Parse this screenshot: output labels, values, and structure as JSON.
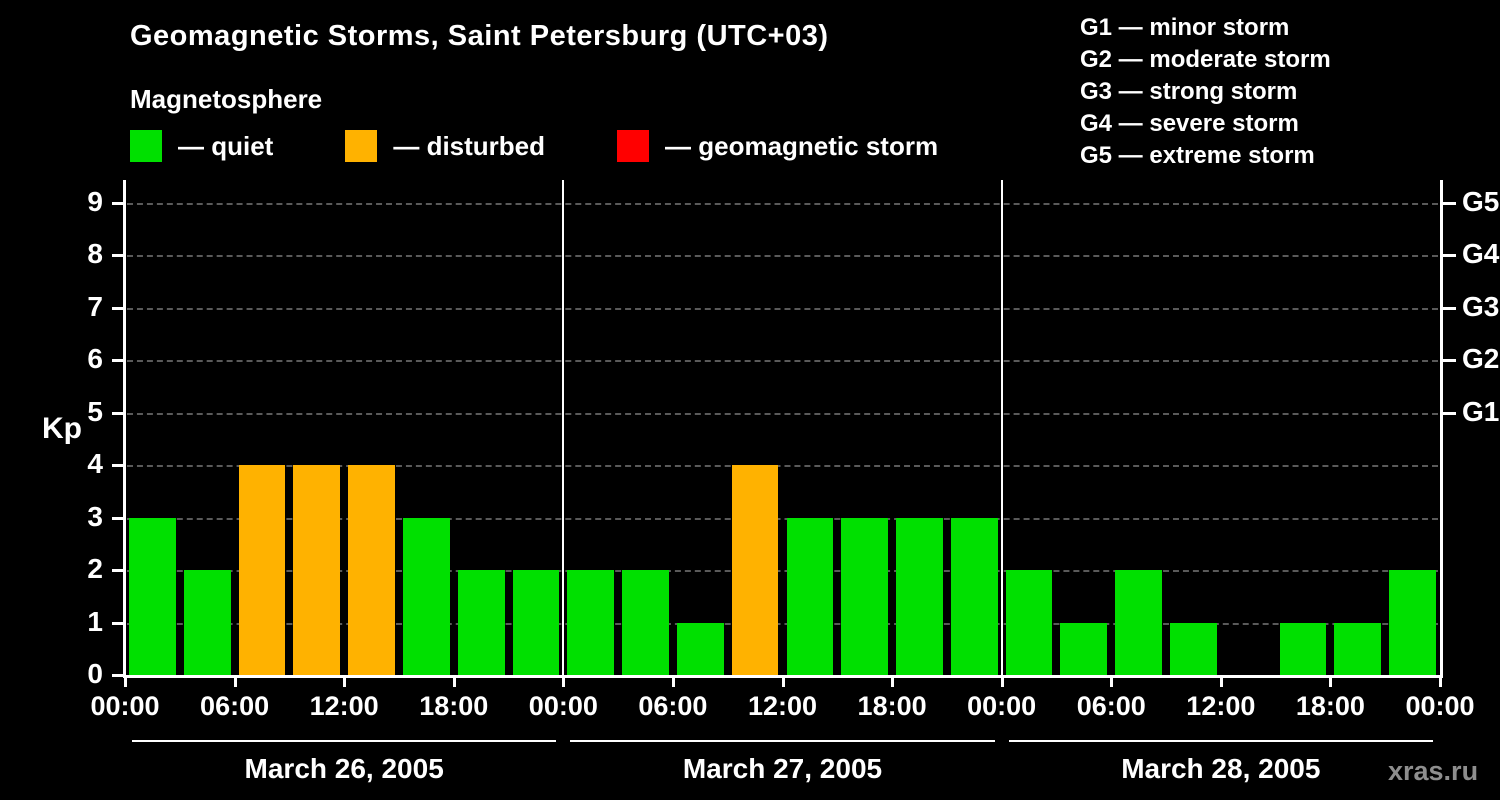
{
  "header": {
    "title": "Geomagnetic Storms, Saint Petersburg (UTC+03)",
    "subtitle": "Magnetosphere"
  },
  "legend": {
    "items": [
      {
        "label": "— quiet",
        "color": "#00e000"
      },
      {
        "label": "— disturbed",
        "color": "#ffb200"
      },
      {
        "label": "— geomagnetic storm",
        "color": "#ff0000"
      }
    ]
  },
  "storm_scale": [
    "G1 — minor storm",
    "G2 — moderate storm",
    "G3 — strong storm",
    "G4 — severe storm",
    "G5 — extreme storm"
  ],
  "watermark": "xras.ru",
  "chart_data": {
    "type": "bar",
    "title": "Geomagnetic Storms, Saint Petersburg (UTC+03)",
    "ylabel": "Kp",
    "ylim": [
      0,
      9
    ],
    "yticks": [
      0,
      1,
      2,
      3,
      4,
      5,
      6,
      7,
      8,
      9
    ],
    "right_axis": [
      {
        "value": 5,
        "label": "G1"
      },
      {
        "value": 6,
        "label": "G2"
      },
      {
        "value": 7,
        "label": "G3"
      },
      {
        "value": 8,
        "label": "G4"
      },
      {
        "value": 9,
        "label": "G5"
      }
    ],
    "x_ticks_per_day": [
      "00:00",
      "06:00",
      "12:00",
      "18:00"
    ],
    "x_final_tick": "00:00",
    "interval_hours": 3,
    "colors": {
      "quiet": "#00e000",
      "disturbed": "#ffb200",
      "storm": "#ff0000"
    },
    "color_thresholds": {
      "quiet_max_kp": 3,
      "disturbed_max_kp": 4
    },
    "days": [
      {
        "date": "March 26, 2005",
        "kp": [
          3,
          2,
          4,
          4,
          4,
          3,
          2,
          2
        ]
      },
      {
        "date": "March 27, 2005",
        "kp": [
          2,
          2,
          1,
          4,
          3,
          3,
          3,
          3
        ]
      },
      {
        "date": "March 28, 2005",
        "kp": [
          2,
          1,
          2,
          1,
          0,
          1,
          1,
          2
        ]
      }
    ],
    "grid": "dashed horizontal lines at each Kp level",
    "legend_position": "top-left"
  }
}
